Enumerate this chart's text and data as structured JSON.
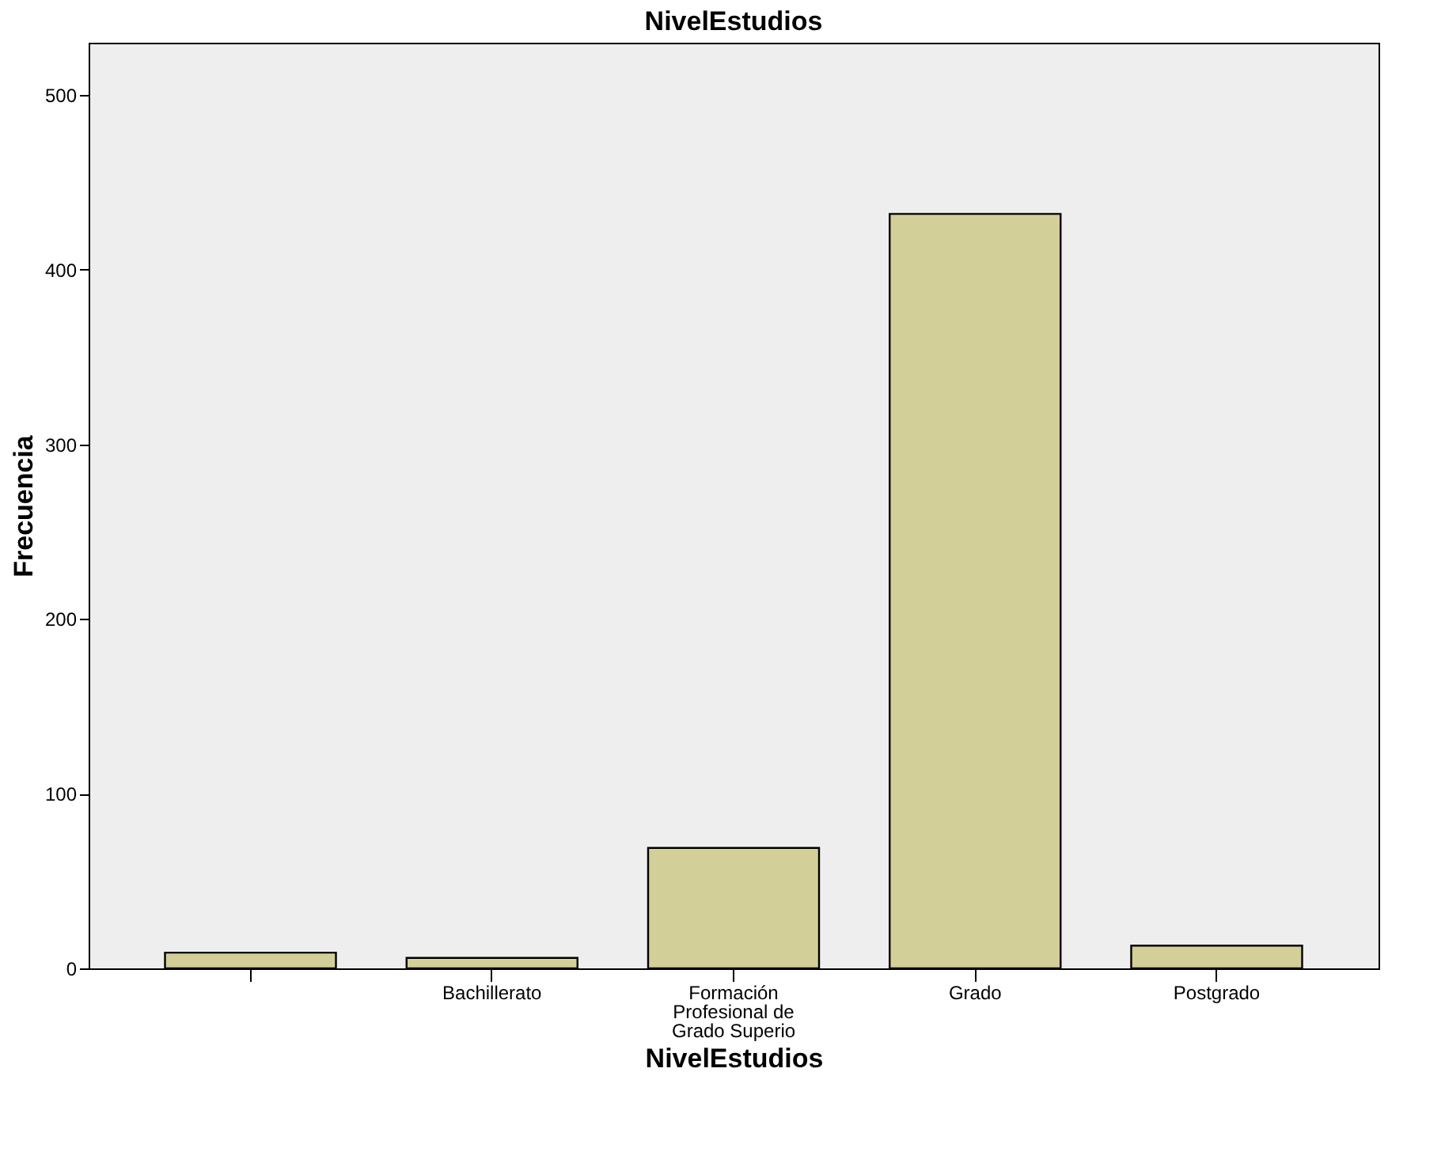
{
  "chart_data": {
    "type": "bar",
    "title": "NivelEstudios",
    "xlabel": "NivelEstudios",
    "ylabel": "Frecuencia",
    "categories": [
      null,
      "Bachillerato",
      "Formación Profesional de Grado Superio",
      "Grado",
      "Postgrado"
    ],
    "values": [
      9,
      6,
      69,
      432,
      13
    ],
    "color": "#d3cf98",
    "ylim": [
      0,
      530
    ],
    "yticks": [
      0,
      100,
      200,
      300,
      400,
      500
    ],
    "grid": false
  }
}
